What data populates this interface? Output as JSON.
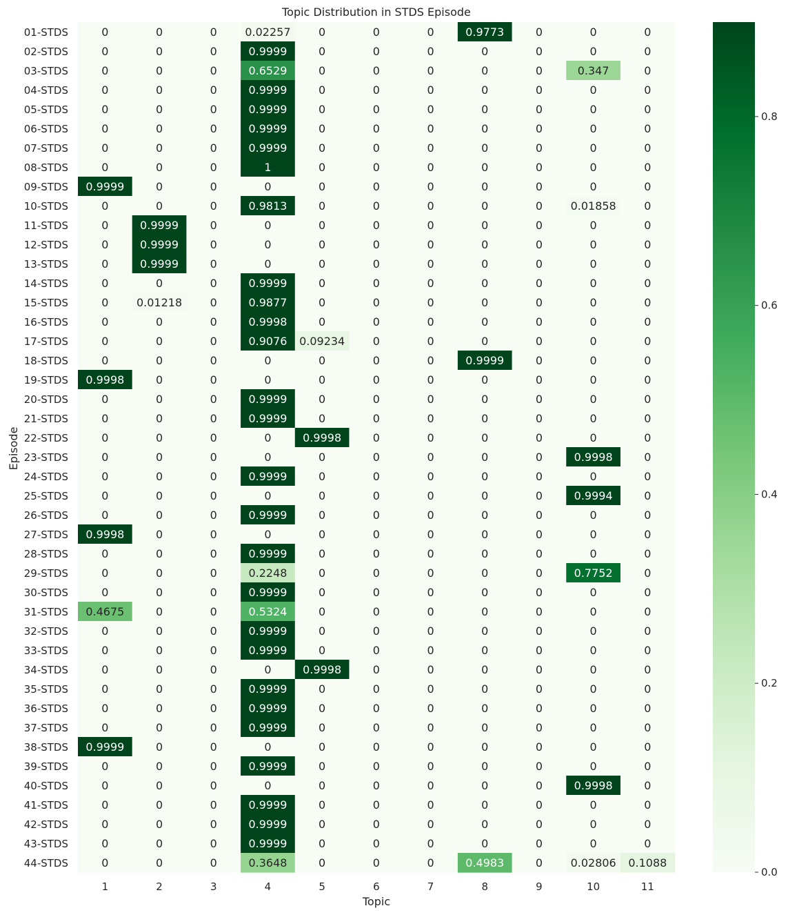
{
  "chart_data": {
    "type": "heatmap",
    "title": "Topic Distribution in STDS Episode",
    "xlabel": "Topic",
    "ylabel": "Episode",
    "x_categories": [
      "1",
      "2",
      "3",
      "4",
      "5",
      "6",
      "7",
      "8",
      "9",
      "10",
      "11"
    ],
    "y_categories": [
      "01-STDS",
      "02-STDS",
      "03-STDS",
      "04-STDS",
      "05-STDS",
      "06-STDS",
      "07-STDS",
      "08-STDS",
      "09-STDS",
      "10-STDS",
      "11-STDS",
      "12-STDS",
      "13-STDS",
      "14-STDS",
      "15-STDS",
      "16-STDS",
      "17-STDS",
      "18-STDS",
      "19-STDS",
      "20-STDS",
      "21-STDS",
      "22-STDS",
      "23-STDS",
      "24-STDS",
      "25-STDS",
      "26-STDS",
      "27-STDS",
      "28-STDS",
      "29-STDS",
      "30-STDS",
      "31-STDS",
      "32-STDS",
      "33-STDS",
      "34-STDS",
      "35-STDS",
      "36-STDS",
      "37-STDS",
      "38-STDS",
      "39-STDS",
      "40-STDS",
      "41-STDS",
      "42-STDS",
      "43-STDS",
      "44-STDS"
    ],
    "values": [
      [
        "0",
        "0",
        "0",
        "0.02257",
        "0",
        "0",
        "0",
        "0.9773",
        "0",
        "0",
        "0"
      ],
      [
        "0",
        "0",
        "0",
        "0.9999",
        "0",
        "0",
        "0",
        "0",
        "0",
        "0",
        "0"
      ],
      [
        "0",
        "0",
        "0",
        "0.6529",
        "0",
        "0",
        "0",
        "0",
        "0",
        "0.347",
        "0"
      ],
      [
        "0",
        "0",
        "0",
        "0.9999",
        "0",
        "0",
        "0",
        "0",
        "0",
        "0",
        "0"
      ],
      [
        "0",
        "0",
        "0",
        "0.9999",
        "0",
        "0",
        "0",
        "0",
        "0",
        "0",
        "0"
      ],
      [
        "0",
        "0",
        "0",
        "0.9999",
        "0",
        "0",
        "0",
        "0",
        "0",
        "0",
        "0"
      ],
      [
        "0",
        "0",
        "0",
        "0.9999",
        "0",
        "0",
        "0",
        "0",
        "0",
        "0",
        "0"
      ],
      [
        "0",
        "0",
        "0",
        "1",
        "0",
        "0",
        "0",
        "0",
        "0",
        "0",
        "0"
      ],
      [
        "0.9999",
        "0",
        "0",
        "0",
        "0",
        "0",
        "0",
        "0",
        "0",
        "0",
        "0"
      ],
      [
        "0",
        "0",
        "0",
        "0.9813",
        "0",
        "0",
        "0",
        "0",
        "0",
        "0.01858",
        "0"
      ],
      [
        "0",
        "0.9999",
        "0",
        "0",
        "0",
        "0",
        "0",
        "0",
        "0",
        "0",
        "0"
      ],
      [
        "0",
        "0.9999",
        "0",
        "0",
        "0",
        "0",
        "0",
        "0",
        "0",
        "0",
        "0"
      ],
      [
        "0",
        "0.9999",
        "0",
        "0",
        "0",
        "0",
        "0",
        "0",
        "0",
        "0",
        "0"
      ],
      [
        "0",
        "0",
        "0",
        "0.9999",
        "0",
        "0",
        "0",
        "0",
        "0",
        "0",
        "0"
      ],
      [
        "0",
        "0.01218",
        "0",
        "0.9877",
        "0",
        "0",
        "0",
        "0",
        "0",
        "0",
        "0"
      ],
      [
        "0",
        "0",
        "0",
        "0.9998",
        "0",
        "0",
        "0",
        "0",
        "0",
        "0",
        "0"
      ],
      [
        "0",
        "0",
        "0",
        "0.9076",
        "0.09234",
        "0",
        "0",
        "0",
        "0",
        "0",
        "0"
      ],
      [
        "0",
        "0",
        "0",
        "0",
        "0",
        "0",
        "0",
        "0.9999",
        "0",
        "0",
        "0"
      ],
      [
        "0.9998",
        "0",
        "0",
        "0",
        "0",
        "0",
        "0",
        "0",
        "0",
        "0",
        "0"
      ],
      [
        "0",
        "0",
        "0",
        "0.9999",
        "0",
        "0",
        "0",
        "0",
        "0",
        "0",
        "0"
      ],
      [
        "0",
        "0",
        "0",
        "0.9999",
        "0",
        "0",
        "0",
        "0",
        "0",
        "0",
        "0"
      ],
      [
        "0",
        "0",
        "0",
        "0",
        "0.9998",
        "0",
        "0",
        "0",
        "0",
        "0",
        "0"
      ],
      [
        "0",
        "0",
        "0",
        "0",
        "0",
        "0",
        "0",
        "0",
        "0",
        "0.9998",
        "0"
      ],
      [
        "0",
        "0",
        "0",
        "0.9999",
        "0",
        "0",
        "0",
        "0",
        "0",
        "0",
        "0"
      ],
      [
        "0",
        "0",
        "0",
        "0",
        "0",
        "0",
        "0",
        "0",
        "0",
        "0.9994",
        "0"
      ],
      [
        "0",
        "0",
        "0",
        "0.9999",
        "0",
        "0",
        "0",
        "0",
        "0",
        "0",
        "0"
      ],
      [
        "0.9998",
        "0",
        "0",
        "0",
        "0",
        "0",
        "0",
        "0",
        "0",
        "0",
        "0"
      ],
      [
        "0",
        "0",
        "0",
        "0.9999",
        "0",
        "0",
        "0",
        "0",
        "0",
        "0",
        "0"
      ],
      [
        "0",
        "0",
        "0",
        "0.2248",
        "0",
        "0",
        "0",
        "0",
        "0",
        "0.7752",
        "0"
      ],
      [
        "0",
        "0",
        "0",
        "0.9999",
        "0",
        "0",
        "0",
        "0",
        "0",
        "0",
        "0"
      ],
      [
        "0.4675",
        "0",
        "0",
        "0.5324",
        "0",
        "0",
        "0",
        "0",
        "0",
        "0",
        "0"
      ],
      [
        "0",
        "0",
        "0",
        "0.9999",
        "0",
        "0",
        "0",
        "0",
        "0",
        "0",
        "0"
      ],
      [
        "0",
        "0",
        "0",
        "0.9999",
        "0",
        "0",
        "0",
        "0",
        "0",
        "0",
        "0"
      ],
      [
        "0",
        "0",
        "0",
        "0",
        "0.9998",
        "0",
        "0",
        "0",
        "0",
        "0",
        "0"
      ],
      [
        "0",
        "0",
        "0",
        "0.9999",
        "0",
        "0",
        "0",
        "0",
        "0",
        "0",
        "0"
      ],
      [
        "0",
        "0",
        "0",
        "0.9999",
        "0",
        "0",
        "0",
        "0",
        "0",
        "0",
        "0"
      ],
      [
        "0",
        "0",
        "0",
        "0.9999",
        "0",
        "0",
        "0",
        "0",
        "0",
        "0",
        "0"
      ],
      [
        "0.9999",
        "0",
        "0",
        "0",
        "0",
        "0",
        "0",
        "0",
        "0",
        "0",
        "0"
      ],
      [
        "0",
        "0",
        "0",
        "0.9999",
        "0",
        "0",
        "0",
        "0",
        "0",
        "0",
        "0"
      ],
      [
        "0",
        "0",
        "0",
        "0",
        "0",
        "0",
        "0",
        "0",
        "0",
        "0.9998",
        "0"
      ],
      [
        "0",
        "0",
        "0",
        "0.9999",
        "0",
        "0",
        "0",
        "0",
        "0",
        "0",
        "0"
      ],
      [
        "0",
        "0",
        "0",
        "0.9999",
        "0",
        "0",
        "0",
        "0",
        "0",
        "0",
        "0"
      ],
      [
        "0",
        "0",
        "0",
        "0.9999",
        "0",
        "0",
        "0",
        "0",
        "0",
        "0",
        "0"
      ],
      [
        "0",
        "0",
        "0",
        "0.3648",
        "0",
        "0",
        "0",
        "0.4983",
        "0",
        "0.02806",
        "0.1088"
      ]
    ],
    "colorscale": "Greens",
    "color_min": 0.0,
    "color_max": 1.0,
    "colorbar_ticks": [
      "0.0",
      "0.2",
      "0.4",
      "0.6",
      "0.8"
    ],
    "grid": false,
    "legend": "colorbar-right"
  }
}
